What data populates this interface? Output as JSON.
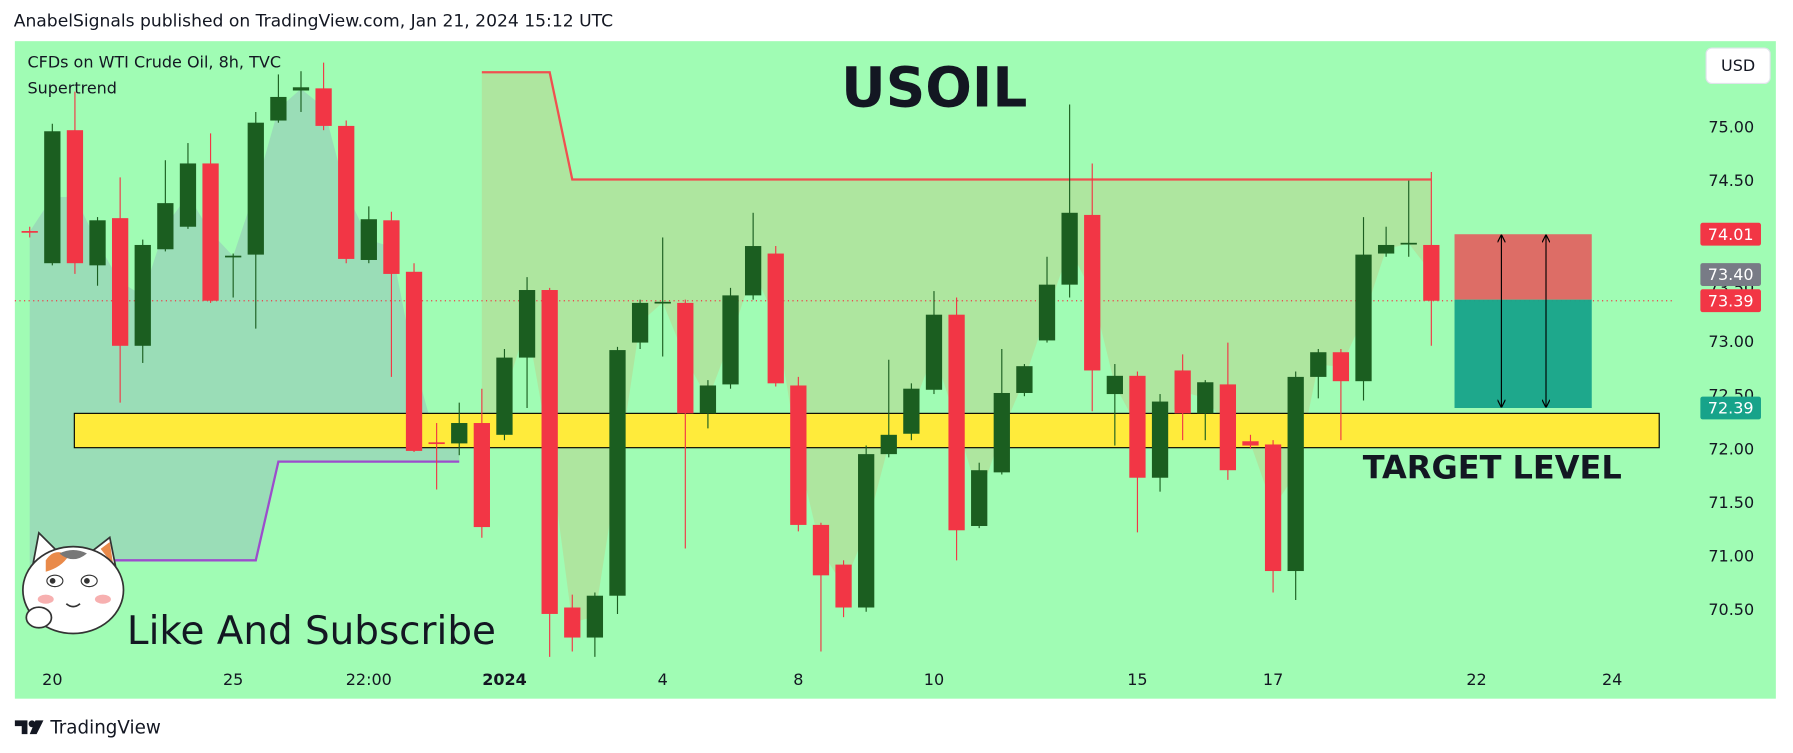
{
  "header": {
    "publisher": "AnabelSignals published on TradingView.com, Jan 21, 2024 15:12 UTC"
  },
  "footer": {
    "brand": "TradingView"
  },
  "chart_data": {
    "type": "candlestick",
    "title": "USOIL",
    "symbol": "CFDs on WTI Crude Oil, 8h, TVC",
    "currency": "USD",
    "annotation": "Like And Subscribe",
    "up_color": "#1b5e20",
    "down_color": "#f23645",
    "categories": [
      null,
      "20",
      null,
      null,
      null,
      null,
      null,
      null,
      null,
      "25",
      null,
      null,
      null,
      null,
      null,
      "22:00",
      null,
      null,
      null,
      null,
      null,
      "2024",
      null,
      null,
      null,
      null,
      null,
      null,
      "4",
      null,
      null,
      null,
      null,
      null,
      "8",
      null,
      null,
      null,
      null,
      null,
      "10",
      null,
      null,
      null,
      null,
      null,
      null,
      null,
      null,
      "15",
      null,
      null,
      null,
      null,
      null,
      "17",
      null,
      null,
      null,
      null,
      null,
      null,
      null,
      null,
      "22",
      null,
      null,
      null,
      null,
      null,
      "24",
      null,
      null
    ],
    "open": [
      74.04,
      73.74,
      74.98,
      73.72,
      74.16,
      72.97,
      73.87,
      74.08,
      74.67,
      73.8,
      73.82,
      75.07,
      75.35,
      75.37,
      75.02,
      73.77,
      74.14,
      73.66,
      72.07,
      72.06,
      72.25,
      72.14,
      72.86,
      73.49,
      70.53,
      70.25,
      70.64,
      73.0,
      73.37,
      73.37,
      72.34,
      72.61,
      73.44,
      73.83,
      72.6,
      71.3,
      70.93,
      70.53,
      71.96,
      72.15,
      72.56,
      73.26,
      71.29,
      71.79,
      72.53,
      73.02,
      73.54,
      74.19,
      72.52,
      72.69,
      71.74,
      72.74,
      72.34,
      72.61,
      72.08,
      72.05,
      70.87,
      72.68,
      72.91,
      72.64,
      73.83,
      73.92,
      73.91,
      null,
      null,
      null,
      null,
      null,
      null,
      null,
      null,
      null,
      null
    ],
    "high": [
      74.08,
      75.04,
      75.34,
      74.17,
      74.54,
      73.96,
      74.7,
      74.86,
      74.95,
      73.83,
      75.15,
      75.5,
      75.53,
      75.61,
      75.07,
      74.27,
      74.22,
      73.74,
      72.25,
      72.44,
      72.57,
      72.94,
      73.61,
      73.51,
      70.65,
      70.67,
      72.96,
      73.4,
      73.98,
      73.4,
      72.65,
      73.51,
      74.21,
      73.9,
      72.68,
      71.32,
      70.97,
      72.04,
      72.84,
      72.62,
      73.48,
      73.42,
      71.88,
      72.94,
      72.8,
      73.8,
      75.22,
      74.67,
      72.8,
      72.73,
      72.52,
      72.89,
      72.65,
      73.0,
      72.14,
      72.09,
      72.73,
      72.94,
      72.94,
      74.17,
      74.08,
      74.51,
      74.59,
      null,
      null,
      null,
      null,
      null,
      null,
      null,
      null,
      null,
      null
    ],
    "low": [
      73.98,
      73.72,
      73.64,
      73.53,
      72.44,
      72.81,
      73.85,
      74.06,
      73.37,
      73.42,
      73.13,
      75.05,
      75.15,
      74.98,
      73.74,
      73.74,
      72.68,
      71.98,
      71.63,
      71.95,
      71.18,
      72.09,
      72.39,
      70.07,
      70.12,
      70.07,
      70.47,
      72.94,
      72.87,
      71.08,
      72.2,
      72.57,
      73.4,
      72.59,
      71.24,
      70.12,
      70.44,
      70.49,
      71.93,
      72.09,
      72.52,
      70.97,
      71.27,
      71.77,
      72.5,
      73.0,
      73.42,
      72.36,
      72.04,
      71.23,
      71.61,
      72.09,
      72.09,
      71.72,
      72.01,
      70.67,
      70.6,
      72.48,
      72.09,
      72.46,
      73.8,
      73.8,
      72.97,
      null,
      null,
      null,
      null,
      null,
      null,
      null,
      null,
      null,
      null
    ],
    "close": [
      74.03,
      74.97,
      73.74,
      74.14,
      72.97,
      73.91,
      74.3,
      74.67,
      73.39,
      73.81,
      75.05,
      75.29,
      75.38,
      75.02,
      73.78,
      74.15,
      73.64,
      71.99,
      72.06,
      72.25,
      71.28,
      72.86,
      73.49,
      70.47,
      70.25,
      70.64,
      72.93,
      73.37,
      73.38,
      72.34,
      72.6,
      73.44,
      73.9,
      72.62,
      71.3,
      70.83,
      70.53,
      71.96,
      72.14,
      72.57,
      73.26,
      71.25,
      71.81,
      72.53,
      72.78,
      73.54,
      74.21,
      72.74,
      72.69,
      71.74,
      72.45,
      72.34,
      72.63,
      71.81,
      72.04,
      70.87,
      72.68,
      72.91,
      72.64,
      73.82,
      73.91,
      73.93,
      73.39,
      null,
      null,
      null,
      null,
      null,
      null,
      null,
      null,
      null,
      null
    ],
    "indicator": {
      "name": "Supertrend",
      "series": [
        {
          "color": "#9c4dcc",
          "fill_color": "rgba(150,200,185,0.6)",
          "values": [
            70.54,
            70.97,
            70.97,
            70.97,
            70.97,
            70.97,
            70.97,
            70.97,
            70.97,
            70.97,
            70.97,
            71.89,
            71.89,
            71.89,
            71.89,
            71.89,
            71.89,
            71.89,
            71.89,
            71.89,
            null,
            null,
            null,
            null,
            null,
            null,
            null,
            null,
            null,
            null,
            null,
            null,
            null,
            null,
            null,
            null,
            null,
            null,
            null,
            null,
            null,
            null,
            null,
            null,
            null,
            null,
            null,
            null,
            null,
            null,
            null,
            null,
            null,
            null,
            null,
            null,
            null,
            null,
            null,
            null,
            null,
            null,
            null,
            null,
            null,
            null,
            null,
            null,
            null,
            null,
            null,
            null,
            null
          ]
        },
        {
          "color": "#f05050",
          "fill_color": "rgba(200,190,120,0.35)",
          "values": [
            null,
            null,
            null,
            null,
            null,
            null,
            null,
            null,
            null,
            null,
            null,
            null,
            null,
            null,
            null,
            null,
            null,
            null,
            null,
            null,
            75.52,
            75.52,
            75.52,
            75.52,
            74.52,
            74.52,
            74.52,
            74.52,
            74.52,
            74.52,
            74.52,
            74.52,
            74.52,
            74.52,
            74.52,
            74.52,
            74.52,
            74.52,
            74.52,
            74.52,
            74.52,
            74.52,
            74.52,
            74.52,
            74.52,
            74.52,
            74.52,
            74.52,
            74.52,
            74.52,
            74.52,
            74.52,
            74.52,
            74.52,
            74.52,
            74.52,
            74.52,
            74.52,
            74.52,
            74.52,
            74.52,
            74.52,
            74.52,
            null,
            null,
            null,
            null,
            null,
            null,
            null,
            null,
            null,
            null
          ]
        }
      ]
    },
    "zones": [
      {
        "label": "TARGET LEVEL",
        "high": 72.34,
        "low": 72.02,
        "color": "#ffeb3b"
      }
    ],
    "position": {
      "stop": 74.01,
      "entry": {
        "value": 73.4,
        "label": "73.40"
      },
      "target": 72.39,
      "loss_color": "#e35d5d",
      "profit_color": "#17a38a"
    },
    "last_price": 73.39,
    "ylim": [
      69.68,
      75.81
    ],
    "yticks": [
      {
        "value": 70.5,
        "label": "70.50"
      },
      {
        "value": 71,
        "label": "71.00"
      },
      {
        "value": 71.5,
        "label": "71.50"
      },
      {
        "value": 72,
        "label": "72.00"
      },
      {
        "value": 72.5,
        "label": "72.50"
      },
      {
        "value": 73,
        "label": "73.00"
      },
      {
        "value": 73.5,
        "label": "73.50"
      },
      {
        "value": 74,
        "label": "74.00"
      },
      {
        "value": 74.5,
        "label": "74.50"
      },
      {
        "value": 75,
        "label": "75.00"
      }
    ]
  }
}
